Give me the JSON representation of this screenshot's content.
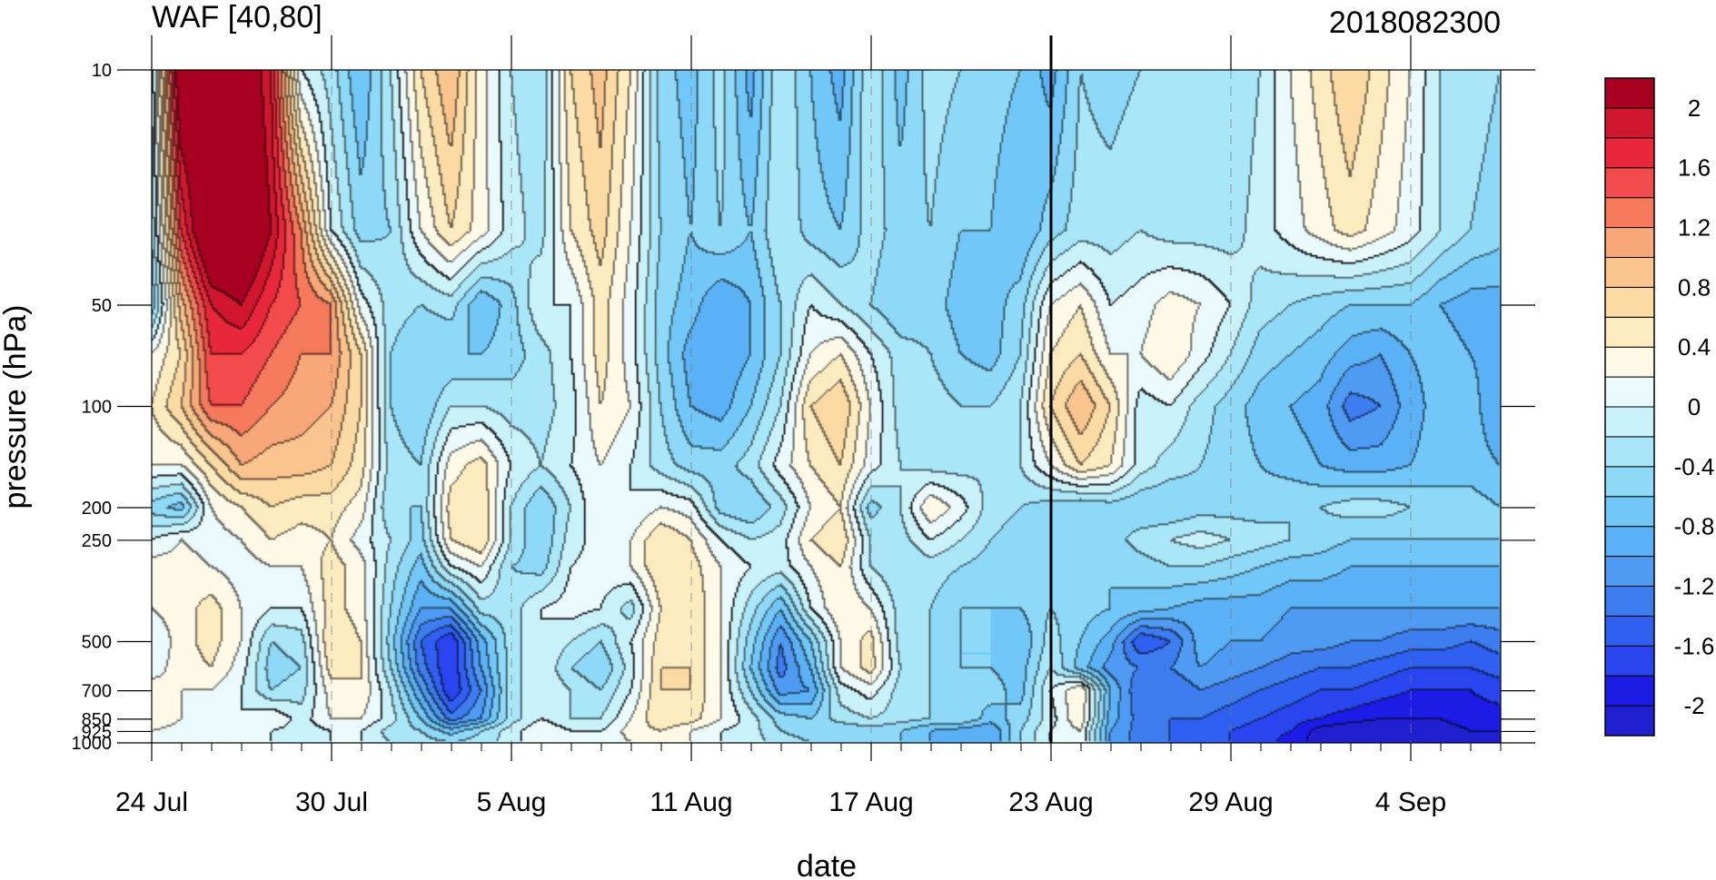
{
  "chart_data": {
    "type": "heatmap",
    "subtype": "filled-contour",
    "title": "WAF [40,80]",
    "subtitle_right": "2018082300",
    "xlabel": "date",
    "ylabel": "pressure (hPa)",
    "x_axis": {
      "kind": "date",
      "start": "2018-07-24",
      "end": "2018-09-07",
      "tick_labels": [
        {
          "date": "2018-07-24",
          "label": "24 Jul"
        },
        {
          "date": "2018-07-30",
          "label": "30 Jul"
        },
        {
          "date": "2018-08-05",
          "label": "5 Aug"
        },
        {
          "date": "2018-08-11",
          "label": "11 Aug"
        },
        {
          "date": "2018-08-17",
          "label": "17 Aug"
        },
        {
          "date": "2018-08-23",
          "label": "23 Aug"
        },
        {
          "date": "2018-08-29",
          "label": "29 Aug"
        },
        {
          "date": "2018-09-04",
          "label": "4 Sep"
        }
      ],
      "minor_tick_interval_days": 1,
      "grid": "dashed at major ticks",
      "marker_line": "2018-08-23"
    },
    "y_axis": {
      "scale": "log",
      "inverted": true,
      "range": [
        1000,
        10
      ],
      "tick_labels": [
        10,
        50,
        100,
        200,
        250,
        500,
        700,
        850,
        925,
        1000
      ]
    },
    "color_scale": {
      "levels": [
        -2.2,
        -2,
        -1.8,
        -1.6,
        -1.4,
        -1.2,
        -1,
        -0.8,
        -0.6,
        -0.4,
        -0.2,
        0,
        0.2,
        0.4,
        0.6,
        0.8,
        1,
        1.2,
        1.4,
        1.6,
        1.8,
        2,
        2.2
      ],
      "colors": [
        "#2020d0",
        "#1c1ce6",
        "#2845f0",
        "#2f60f2",
        "#3d7df0",
        "#4f9af2",
        "#5bb1f5",
        "#71c7f7",
        "#8ed9f7",
        "#a8e6f8",
        "#c8f1f9",
        "#eaf9fb",
        "#fef8e6",
        "#fdebc0",
        "#fbdaa4",
        "#f9c48e",
        "#f8a878",
        "#f57a5c",
        "#f34b4c",
        "#e8283a",
        "#d1172f",
        "#a80020"
      ],
      "labels": [
        "-2",
        "-1.6",
        "-1.2",
        "-0.8",
        "-0.4",
        "0",
        "0.4",
        "0.8",
        "1.2",
        "1.6",
        "2"
      ]
    },
    "grid_pressure_levels": [
      10,
      30,
      50,
      70,
      100,
      150,
      200,
      250,
      300,
      400,
      500,
      600,
      700,
      850,
      925,
      1000
    ],
    "values": [
      [
        -0.2,
        2.4,
        2.4,
        2.4,
        1.8,
        0.0,
        -0.3,
        -0.8,
        -0.2,
        0.6,
        1.0,
        0.3,
        -0.2,
        -0.4,
        0.6,
        0.9,
        0.4,
        -0.5,
        -0.7,
        -0.3,
        -0.9,
        -0.2,
        -0.6,
        -0.9,
        -0.2,
        -0.7,
        -0.3,
        -0.4,
        -0.5,
        -0.6,
        -0.9,
        -0.4,
        -0.5,
        -0.4,
        -0.4,
        -0.3,
        -0.4,
        -0.2,
        0.2,
        0.5,
        0.8,
        0.5,
        0.2,
        -0.2,
        -0.3,
        -0.4
      ],
      [
        -0.4,
        1.6,
        2.6,
        2.6,
        2.0,
        1.2,
        0.0,
        -0.5,
        -0.4,
        0.2,
        0.6,
        0.3,
        -0.1,
        -0.3,
        0.4,
        0.7,
        0.2,
        -0.4,
        -0.6,
        -0.4,
        -0.6,
        -0.2,
        -0.5,
        -0.6,
        -0.3,
        -0.5,
        -0.4,
        -0.6,
        -0.6,
        -0.8,
        -0.5,
        -0.3,
        -0.3,
        -0.2,
        -0.3,
        -0.3,
        -0.3,
        -0.1,
        0.1,
        0.3,
        0.5,
        0.3,
        0.1,
        -0.2,
        -0.4,
        -0.5
      ],
      [
        -0.6,
        0.9,
        1.8,
        2.0,
        1.6,
        1.4,
        1.2,
        0.1,
        -0.3,
        -0.4,
        -0.3,
        -0.8,
        -0.5,
        0.0,
        0.0,
        0.5,
        0.1,
        -0.5,
        -0.7,
        -1.0,
        -0.8,
        -0.4,
        0.0,
        -0.2,
        -0.4,
        -0.6,
        -0.5,
        -0.7,
        -0.7,
        -0.5,
        0.2,
        0.4,
        0.0,
        0.1,
        0.3,
        0.2,
        0.0,
        -0.3,
        -0.4,
        -0.5,
        -0.6,
        -0.6,
        -0.6,
        -0.8,
        -0.9,
        -0.9
      ],
      [
        0.2,
        0.6,
        1.6,
        1.6,
        1.4,
        1.2,
        1.2,
        0.6,
        -0.4,
        -0.6,
        -0.6,
        -0.6,
        -0.5,
        -0.3,
        0.0,
        0.5,
        0.1,
        -0.5,
        -0.9,
        -1.0,
        -0.8,
        -0.4,
        0.2,
        0.4,
        0.0,
        -0.3,
        -0.4,
        -0.6,
        -0.7,
        -0.4,
        0.4,
        0.6,
        0.2,
        0.2,
        0.4,
        0.1,
        -0.2,
        -0.5,
        -0.6,
        -0.7,
        -0.9,
        -1.0,
        -0.8,
        -0.7,
        -0.8,
        -0.9
      ],
      [
        0.4,
        0.8,
        1.4,
        1.4,
        1.2,
        1.1,
        1.0,
        0.6,
        -0.4,
        -0.6,
        -0.2,
        -0.2,
        -0.3,
        -0.3,
        -0.1,
        0.4,
        0.2,
        -0.4,
        -0.8,
        -0.9,
        -0.6,
        -0.2,
        0.6,
        0.8,
        0.2,
        -0.3,
        -0.3,
        -0.4,
        -0.4,
        -0.2,
        0.6,
        1.0,
        0.6,
        -0.1,
        0.0,
        -0.3,
        -0.5,
        -0.7,
        -0.8,
        -0.9,
        -1.3,
        -1.2,
        -0.9,
        -0.7,
        -0.7,
        -1.0
      ],
      [
        0.2,
        0.2,
        0.6,
        1.0,
        0.9,
        0.9,
        0.8,
        0.5,
        -0.3,
        -0.4,
        0.3,
        0.5,
        0.0,
        -0.2,
        0.0,
        0.2,
        0.0,
        -0.3,
        -0.5,
        -0.5,
        -0.3,
        0.1,
        0.4,
        0.6,
        0.1,
        -0.2,
        -0.3,
        -0.3,
        -0.2,
        -0.2,
        0.2,
        0.6,
        0.4,
        -0.1,
        -0.3,
        -0.4,
        -0.5,
        -0.6,
        -0.7,
        -0.8,
        -0.9,
        -0.9,
        -0.8,
        -0.7,
        -0.7,
        -0.8
      ],
      [
        -0.5,
        -0.7,
        0.2,
        0.4,
        0.6,
        0.5,
        0.5,
        0.3,
        -0.4,
        -0.4,
        0.5,
        0.6,
        -0.2,
        -0.6,
        -0.2,
        0.2,
        0.0,
        0.2,
        0.1,
        -0.5,
        -0.6,
        -0.3,
        0.2,
        0.4,
        -0.5,
        -0.2,
        0.4,
        0.1,
        -0.3,
        -0.4,
        -0.5,
        -0.6,
        -0.5,
        -0.6,
        -0.6,
        -0.5,
        -0.5,
        -0.5,
        -0.4,
        -0.4,
        -0.3,
        -0.3,
        -0.4,
        -0.5,
        -0.5,
        -0.6
      ],
      [
        0.0,
        0.2,
        0.1,
        0.2,
        0.4,
        0.3,
        0.4,
        0.1,
        -0.2,
        -0.5,
        0.4,
        0.6,
        -0.2,
        -0.6,
        -0.1,
        0.1,
        0.2,
        0.6,
        0.4,
        0.0,
        -0.2,
        -0.1,
        0.4,
        0.6,
        -0.2,
        -0.3,
        0.0,
        -0.2,
        -0.4,
        -0.5,
        -0.4,
        -0.4,
        -0.5,
        -0.3,
        -0.2,
        -0.1,
        -0.2,
        -0.3,
        -0.4,
        -0.5,
        -0.6,
        -0.6,
        -0.6,
        -0.6,
        -0.6,
        -0.6
      ],
      [
        0.3,
        0.3,
        0.2,
        0.1,
        0.2,
        0.2,
        0.5,
        0.3,
        -0.3,
        -0.7,
        0.0,
        0.2,
        -0.4,
        -0.5,
        0.0,
        0.1,
        0.2,
        0.6,
        0.5,
        0.2,
        0.0,
        -0.1,
        0.2,
        0.4,
        -0.2,
        -0.4,
        -0.3,
        -0.4,
        -0.5,
        -0.5,
        -0.5,
        -0.6,
        -0.6,
        -0.5,
        -0.4,
        -0.4,
        -0.5,
        -0.6,
        -0.7,
        -0.7,
        -0.8,
        -0.8,
        -0.8,
        -0.8,
        -0.8,
        -0.8
      ],
      [
        0.2,
        0.3,
        0.5,
        0.2,
        0.0,
        0.0,
        0.5,
        0.3,
        -0.4,
        -1.0,
        -1.0,
        -0.3,
        -0.3,
        0.0,
        0.1,
        0.0,
        -0.3,
        0.4,
        0.6,
        0.2,
        -0.3,
        -0.8,
        0.0,
        0.4,
        0.2,
        -0.3,
        -0.4,
        -0.6,
        -0.6,
        -0.6,
        -0.4,
        -0.5,
        -0.6,
        -0.7,
        -0.8,
        -0.9,
        -0.9,
        -0.9,
        -1.0,
        -1.0,
        -1.0,
        -1.0,
        -1.0,
        -1.0,
        -1.0,
        -1.0
      ],
      [
        0.0,
        0.3,
        0.5,
        0.2,
        -0.4,
        -0.3,
        0.6,
        0.4,
        -0.5,
        -1.4,
        -1.8,
        -0.9,
        -0.3,
        0.0,
        -0.2,
        -0.4,
        0.0,
        0.5,
        0.6,
        0.2,
        -0.5,
        -1.2,
        -0.6,
        0.2,
        0.5,
        -0.3,
        -0.4,
        -0.6,
        -0.6,
        -0.8,
        -0.3,
        -0.6,
        -0.9,
        -1.6,
        -1.4,
        -0.9,
        -1.0,
        -1.0,
        -1.1,
        -1.1,
        -1.2,
        -1.2,
        -1.3,
        -1.3,
        -1.4,
        -1.3
      ],
      [
        0.1,
        0.3,
        0.4,
        0.1,
        -0.5,
        -0.4,
        0.5,
        0.4,
        -0.4,
        -1.3,
        -1.8,
        -1.0,
        -0.3,
        0.0,
        -0.4,
        -0.6,
        -0.1,
        0.6,
        0.6,
        0.2,
        -0.6,
        -1.3,
        -0.8,
        0.2,
        0.5,
        -0.2,
        -0.4,
        -0.6,
        -0.6,
        -0.7,
        -0.2,
        -0.7,
        -1.1,
        -1.2,
        -1.2,
        -1.0,
        -1.1,
        -1.2,
        -1.3,
        -1.4,
        -1.4,
        -1.5,
        -1.6,
        -1.6,
        -1.6,
        -1.5
      ],
      [
        0.3,
        0.2,
        0.2,
        0.0,
        -0.4,
        -0.3,
        0.3,
        0.4,
        -0.2,
        -1.0,
        -1.8,
        -1.2,
        -0.3,
        0.0,
        -0.2,
        -0.4,
        0.0,
        0.6,
        0.6,
        0.2,
        -0.4,
        -1.1,
        -1.0,
        -0.1,
        0.1,
        -0.3,
        -0.4,
        -0.6,
        -0.5,
        -0.7,
        0.0,
        0.4,
        -0.8,
        -1.4,
        -1.4,
        -1.2,
        -1.3,
        -1.4,
        -1.5,
        -1.6,
        -1.6,
        -1.7,
        -1.8,
        -1.8,
        -1.8,
        -1.7
      ],
      [
        0.4,
        0.2,
        0.0,
        0.0,
        0.2,
        -0.1,
        0.2,
        0.2,
        -0.1,
        -0.6,
        -1.3,
        -1.0,
        -0.3,
        0.0,
        -0.2,
        -0.2,
        0.2,
        0.6,
        0.5,
        0.2,
        -0.1,
        -0.5,
        -0.6,
        -0.3,
        -0.2,
        -0.3,
        -0.4,
        -0.4,
        -0.7,
        -0.5,
        -0.1,
        0.4,
        -0.9,
        -1.3,
        -1.4,
        -1.4,
        -1.5,
        -1.6,
        -1.7,
        -1.8,
        -1.9,
        -2.0,
        -2.0,
        -2.0,
        -1.9,
        -1.9
      ],
      [
        0.2,
        0.1,
        0.0,
        0.2,
        0.0,
        -0.1,
        0.0,
        0.0,
        -0.3,
        -0.4,
        -0.7,
        -0.4,
        -0.1,
        0.2,
        0.0,
        0.0,
        0.3,
        0.4,
        0.2,
        0.0,
        -0.1,
        -0.4,
        -0.5,
        -0.6,
        -0.5,
        -0.6,
        -0.8,
        -0.9,
        -1.0,
        -0.4,
        0.0,
        0.2,
        -1.0,
        -1.3,
        -1.4,
        -1.5,
        -1.6,
        -1.7,
        -1.8,
        -2.1,
        -2.2,
        -2.2,
        -2.1,
        -2.1,
        -2.0,
        -2.0
      ],
      [
        0.0,
        0.0,
        0.0,
        0.1,
        0.0,
        -0.1,
        0.0,
        0.0,
        -0.2,
        -0.3,
        -0.4,
        -0.3,
        -0.1,
        0.2,
        0.1,
        0.0,
        0.2,
        0.3,
        0.2,
        0.0,
        -0.1,
        -0.3,
        -0.4,
        -0.5,
        -0.5,
        -0.6,
        -0.8,
        -0.9,
        -1.0,
        -0.4,
        0.0,
        0.2,
        -1.0,
        -1.3,
        -1.4,
        -1.5,
        -1.6,
        -1.7,
        -1.9,
        -2.1,
        -2.2,
        -2.2,
        -2.2,
        -2.1,
        -2.1,
        -2.1
      ]
    ]
  }
}
